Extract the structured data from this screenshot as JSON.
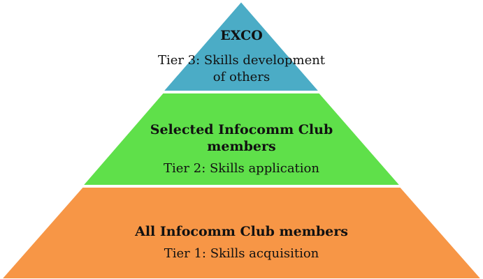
{
  "pyramid": {
    "tiers": [
      {
        "title": "EXCO",
        "description": "Tier 3: Skills development of others",
        "color": "#4BACC6"
      },
      {
        "title": "Selected Infocomm Club members",
        "description": "Tier 2: Skills application",
        "color": "#5FE04A"
      },
      {
        "title": "All Infocomm Club members",
        "description": "Tier 1: Skills acquisition",
        "color": "#F79646"
      }
    ]
  }
}
